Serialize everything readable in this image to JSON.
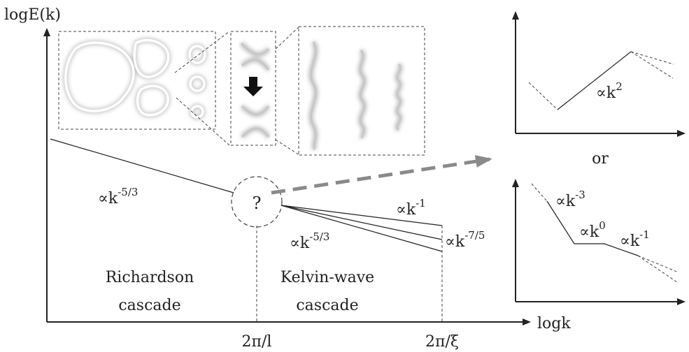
{
  "main_plot": {
    "y_label": "logE(k)",
    "x_label": "logk",
    "tick_l": "2π/l",
    "tick_xi": "2π/ξ",
    "richardson": [
      "Richardson",
      "cascade"
    ],
    "kelvin": [
      "Kelvin-wave",
      "cascade"
    ],
    "question": "?",
    "slope_richardson": {
      "base": "∝k",
      "exp": "-5/3"
    },
    "slope_top": {
      "base": "∝k",
      "exp": "-1"
    },
    "slope_bottom": {
      "base": "∝k",
      "exp": "-5/3"
    },
    "slope_right": {
      "base": "∝k",
      "exp": "-7/5"
    }
  },
  "inset_top": {
    "slope": {
      "base": "∝k",
      "exp": "2"
    }
  },
  "or_label": "or",
  "inset_bottom": {
    "slope_a": {
      "base": "∝k",
      "exp": "-3"
    },
    "slope_b": {
      "base": "∝k",
      "exp": "0"
    },
    "slope_c": {
      "base": "∝k",
      "exp": "-1"
    }
  },
  "colors": {
    "line": "#222222",
    "arrow_gray": "#8a8a8a"
  }
}
